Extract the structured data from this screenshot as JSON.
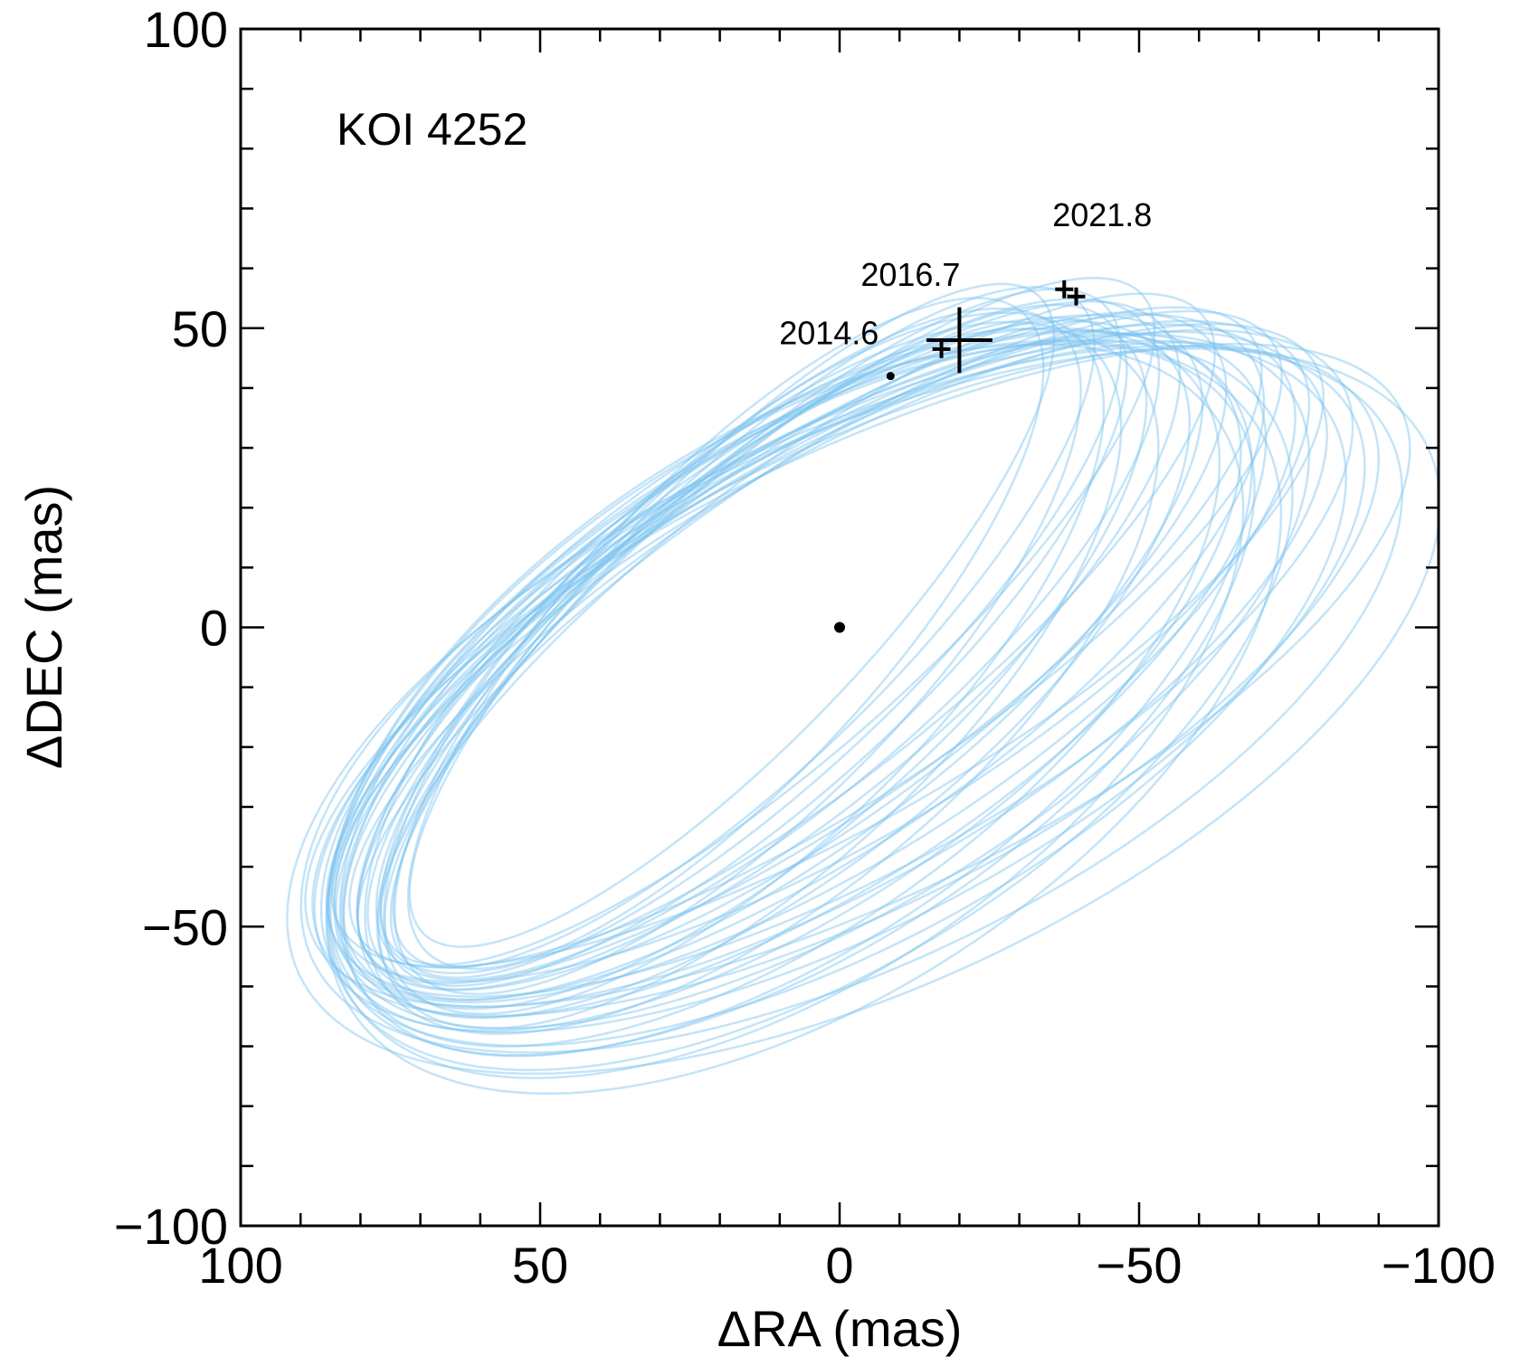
{
  "chart_data": {
    "type": "scatter",
    "title": "KOI 4252",
    "xlabel": "ΔRA (mas)",
    "ylabel": "ΔDEC (mas)",
    "xlim": [
      100,
      -100
    ],
    "ylim": [
      -100,
      100
    ],
    "x_ticks": [
      100,
      50,
      0,
      -50,
      -100
    ],
    "x_tick_labels": [
      "100",
      "50",
      "0",
      "−50",
      "−100"
    ],
    "y_ticks": [
      -100,
      -50,
      0,
      50,
      100
    ],
    "y_tick_labels": [
      "−100",
      "−50",
      "0",
      "50",
      "100"
    ],
    "minor_tick_step": 10,
    "grid": false,
    "orbit_color": "#7cc4f0",
    "marker_color": "#000000",
    "primary_star": {
      "x": 0,
      "y": 0
    },
    "observations": [
      {
        "epoch": "2014.6",
        "x": -8.5,
        "y": 42.0,
        "xerr": 0.5,
        "yerr": 0.5
      },
      {
        "epoch": "",
        "x": -17.0,
        "y": 46.5,
        "xerr": 1.5,
        "yerr": 1.5
      },
      {
        "epoch": "2016.7",
        "x": -20.0,
        "y": 48.0,
        "xerr": 5.5,
        "yerr": 5.5
      },
      {
        "epoch": "2021.8",
        "x": -37.5,
        "y": 56.5,
        "xerr": 1.5,
        "yerr": 1.5
      },
      {
        "epoch": "",
        "x": -39.5,
        "y": 55.3,
        "xerr": 1.5,
        "yerr": 1.5
      }
    ],
    "orbits": [
      {
        "cx": 8,
        "cy": -4,
        "a": 87,
        "b": 30,
        "pa": 36
      },
      {
        "cx": 4,
        "cy": -6,
        "a": 92,
        "b": 34,
        "pa": 32
      },
      {
        "cx": 12,
        "cy": -2,
        "a": 82,
        "b": 28,
        "pa": 40
      },
      {
        "cx": 0,
        "cy": -10,
        "a": 97,
        "b": 40,
        "pa": 28
      },
      {
        "cx": 16,
        "cy": 0,
        "a": 78,
        "b": 24,
        "pa": 44
      },
      {
        "cx": 6,
        "cy": -8,
        "a": 89,
        "b": 36,
        "pa": 33
      },
      {
        "cx": 10,
        "cy": -5,
        "a": 85,
        "b": 32,
        "pa": 37
      },
      {
        "cx": -2,
        "cy": -12,
        "a": 100,
        "b": 44,
        "pa": 26
      },
      {
        "cx": 14,
        "cy": -3,
        "a": 80,
        "b": 26,
        "pa": 42
      },
      {
        "cx": 2,
        "cy": -7,
        "a": 94,
        "b": 36,
        "pa": 30
      },
      {
        "cx": 9,
        "cy": -9,
        "a": 88,
        "b": 38,
        "pa": 34
      },
      {
        "cx": 18,
        "cy": 2,
        "a": 74,
        "b": 22,
        "pa": 46
      },
      {
        "cx": 5,
        "cy": -3,
        "a": 90,
        "b": 28,
        "pa": 35
      },
      {
        "cx": -4,
        "cy": -14,
        "a": 104,
        "b": 46,
        "pa": 25
      },
      {
        "cx": 11,
        "cy": -7,
        "a": 84,
        "b": 34,
        "pa": 38
      },
      {
        "cx": 7,
        "cy": -1,
        "a": 86,
        "b": 26,
        "pa": 38
      },
      {
        "cx": 1,
        "cy": -11,
        "a": 95,
        "b": 42,
        "pa": 29
      },
      {
        "cx": 13,
        "cy": -6,
        "a": 81,
        "b": 30,
        "pa": 41
      },
      {
        "cx": 3,
        "cy": -4,
        "a": 93,
        "b": 32,
        "pa": 31
      },
      {
        "cx": 15,
        "cy": -8,
        "a": 79,
        "b": 33,
        "pa": 43
      },
      {
        "cx": -1,
        "cy": -9,
        "a": 98,
        "b": 38,
        "pa": 27
      },
      {
        "cx": 8,
        "cy": -12,
        "a": 88,
        "b": 42,
        "pa": 33
      },
      {
        "cx": 12,
        "cy": 1,
        "a": 83,
        "b": 24,
        "pa": 41
      },
      {
        "cx": 6,
        "cy": -5,
        "a": 90,
        "b": 33,
        "pa": 34
      },
      {
        "cx": 10,
        "cy": -10,
        "a": 86,
        "b": 40,
        "pa": 36
      },
      {
        "cx": 4,
        "cy": -2,
        "a": 91,
        "b": 28,
        "pa": 33
      },
      {
        "cx": 17,
        "cy": -4,
        "a": 76,
        "b": 28,
        "pa": 45
      },
      {
        "cx": 0,
        "cy": -6,
        "a": 96,
        "b": 35,
        "pa": 29
      },
      {
        "cx": 9,
        "cy": -14,
        "a": 87,
        "b": 45,
        "pa": 34
      },
      {
        "cx": 14,
        "cy": -1,
        "a": 80,
        "b": 25,
        "pa": 43
      },
      {
        "cx": 3,
        "cy": -9,
        "a": 92,
        "b": 39,
        "pa": 31
      },
      {
        "cx": 11,
        "cy": -3,
        "a": 84,
        "b": 29,
        "pa": 39
      },
      {
        "cx": -3,
        "cy": -8,
        "a": 101,
        "b": 37,
        "pa": 26
      },
      {
        "cx": 7,
        "cy": -11,
        "a": 88,
        "b": 41,
        "pa": 35
      },
      {
        "cx": 16,
        "cy": -6,
        "a": 78,
        "b": 31,
        "pa": 44
      },
      {
        "cx": 5,
        "cy": -13,
        "a": 91,
        "b": 44,
        "pa": 32
      },
      {
        "cx": 13,
        "cy": -9,
        "a": 81,
        "b": 36,
        "pa": 40
      },
      {
        "cx": 2,
        "cy": -3,
        "a": 94,
        "b": 30,
        "pa": 30
      },
      {
        "cx": 19,
        "cy": -1,
        "a": 73,
        "b": 25,
        "pa": 47
      },
      {
        "cx": 6,
        "cy": -15,
        "a": 90,
        "b": 47,
        "pa": 33
      }
    ]
  }
}
